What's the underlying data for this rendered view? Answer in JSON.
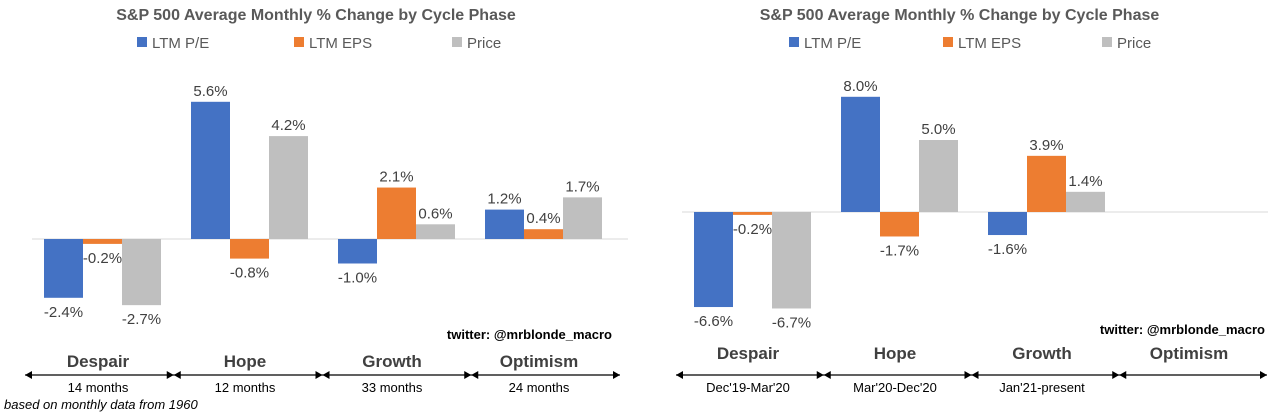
{
  "colors": {
    "LTM P/E": "#4472C4",
    "LTM EPS": "#ED7D31",
    "Price": "#BFBFBF",
    "axis": "#d9d9d9"
  },
  "footnote": "based on monthly data from 1960",
  "chart_data": [
    {
      "type": "bar",
      "title": "S&P 500 Average Monthly % Change by Cycle Phase",
      "legend": "top-center",
      "grid": false,
      "ylim": [
        -3.4,
        6.2
      ],
      "categories": [
        "Despair",
        "Hope",
        "Growth",
        "Optimism"
      ],
      "periods": [
        "14 months",
        "12 months",
        "33 months",
        "24 months"
      ],
      "series": [
        {
          "name": "LTM P/E",
          "values": [
            -2.4,
            5.6,
            -1.0,
            1.2
          ],
          "labels": [
            "-2.4%",
            "5.6%",
            "-1.0%",
            "1.2%"
          ]
        },
        {
          "name": "LTM EPS",
          "values": [
            -0.2,
            -0.8,
            2.1,
            0.4
          ],
          "labels": [
            "-0.2%",
            "-0.8%",
            "2.1%",
            "0.4%"
          ]
        },
        {
          "name": "Price",
          "values": [
            -2.7,
            4.2,
            0.6,
            1.7
          ],
          "labels": [
            "-2.7%",
            "4.2%",
            "0.6%",
            "1.7%"
          ]
        }
      ],
      "annotation": "twitter: @mrblonde_macro"
    },
    {
      "type": "bar",
      "title": "S&P 500 Average Monthly % Change by Cycle Phase",
      "legend": "top-center",
      "grid": false,
      "ylim": [
        -7.6,
        9.0
      ],
      "categories": [
        "Despair",
        "Hope",
        "Growth",
        "Optimism"
      ],
      "periods": [
        "Dec'19-Mar'20",
        "Mar'20-Dec'20",
        "Jan'21-present",
        ""
      ],
      "series": [
        {
          "name": "LTM P/E",
          "values": [
            -6.6,
            8.0,
            -1.6,
            null
          ],
          "labels": [
            "-6.6%",
            "8.0%",
            "-1.6%",
            ""
          ]
        },
        {
          "name": "LTM EPS",
          "values": [
            -0.2,
            -1.7,
            3.9,
            null
          ],
          "labels": [
            "-0.2%",
            "-1.7%",
            "3.9%",
            ""
          ]
        },
        {
          "name": "Price",
          "values": [
            -6.7,
            5.0,
            1.4,
            null
          ],
          "labels": [
            "-6.7%",
            "5.0%",
            "1.4%",
            ""
          ]
        }
      ],
      "annotation": "twitter: @mrblonde_macro"
    }
  ]
}
